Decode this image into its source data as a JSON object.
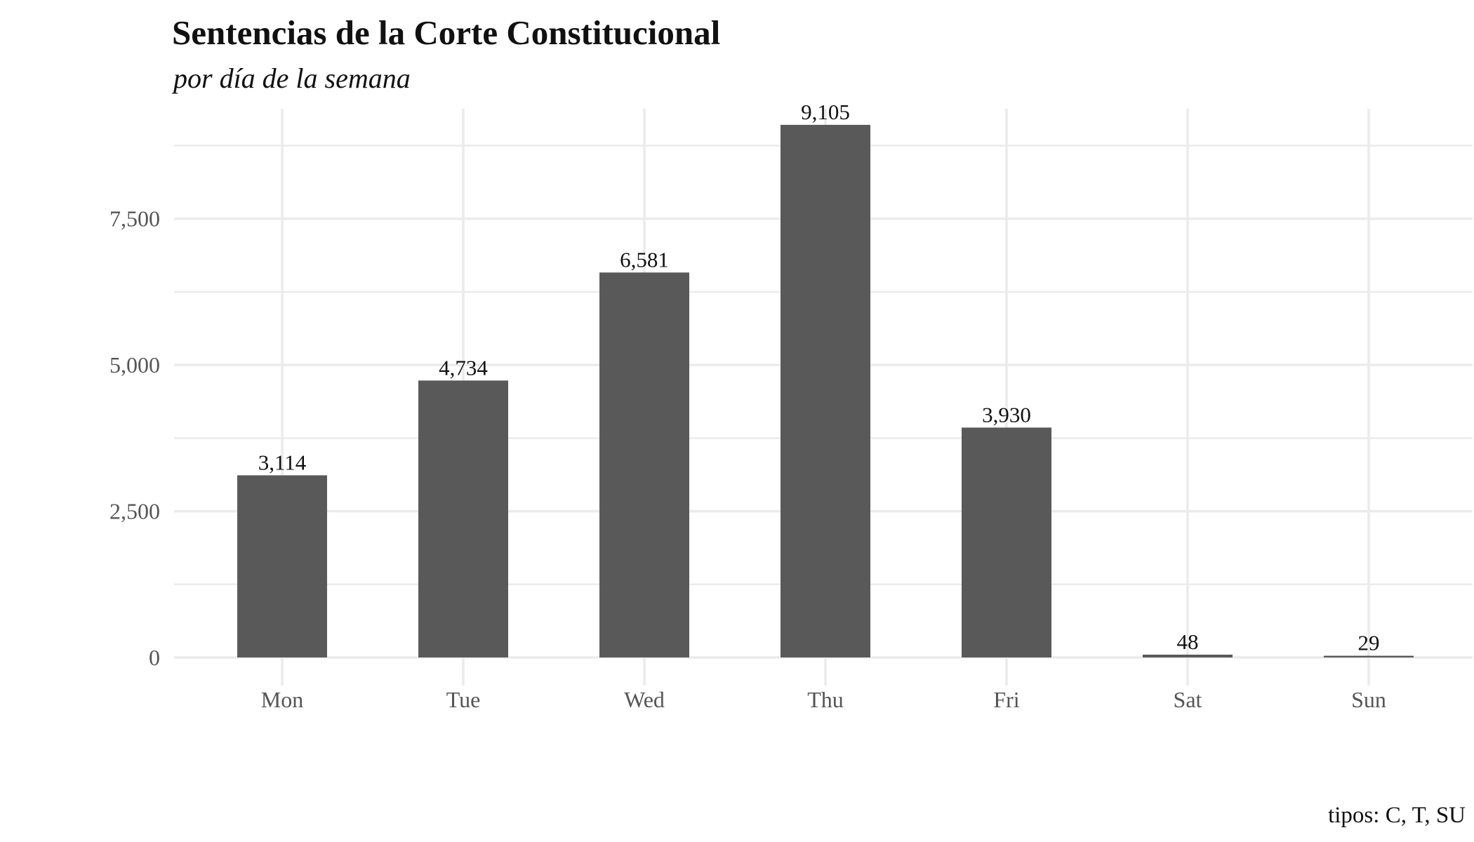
{
  "chart_data": {
    "type": "bar",
    "title": "Sentencias de la Corte Constitucional",
    "subtitle": "por día de la semana",
    "caption": "tipos: C, T, SU",
    "categories": [
      "Mon",
      "Tue",
      "Wed",
      "Thu",
      "Fri",
      "Sat",
      "Sun"
    ],
    "values": [
      3114,
      4734,
      6581,
      9105,
      3930,
      48,
      29
    ],
    "data_labels": [
      "3,114",
      "4,734",
      "6,581",
      "9,105",
      "3,930",
      "48",
      "29"
    ],
    "xlabel": "",
    "ylabel": "",
    "ylim": [
      0,
      9380
    ],
    "yticks": [
      0,
      2500,
      5000,
      7500
    ],
    "ytick_labels": [
      "0",
      "2,500",
      "5,000",
      "7,500"
    ],
    "minor_yticks": [
      1250,
      3750,
      6250,
      8750
    ],
    "grid": true,
    "legend": "none",
    "colors": {
      "bar": "#595959",
      "grid": "#ebebeb",
      "axis_text": "#555555",
      "text": "#111111"
    }
  }
}
